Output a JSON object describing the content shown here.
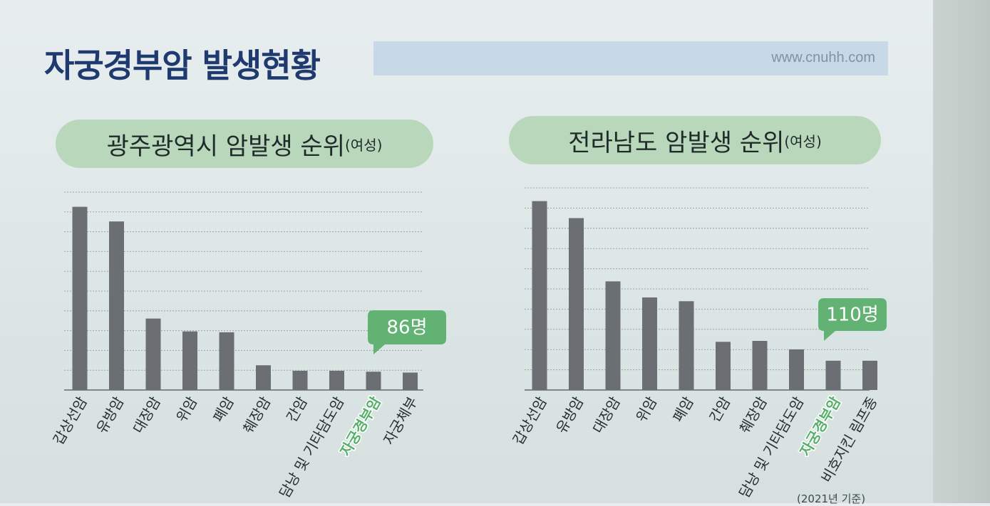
{
  "page": {
    "title": "자궁경부암 발생현황",
    "url": "www.cnuhh.com",
    "footnote": "(2021년 기준)"
  },
  "colors": {
    "bar": "#6b6e72",
    "grid": "#9aa6a6",
    "highlight_label": "#57b06a",
    "callout": "#62b274",
    "title": "#1e3a6e"
  },
  "chart_data": [
    {
      "type": "bar",
      "title": "광주광역시 암발생 순위",
      "subtitle": "(여성)",
      "categories": [
        "갑상선암",
        "유방암",
        "대장암",
        "위암",
        "폐암",
        "췌장암",
        "간암",
        "담낭 및 기타담도암",
        "자궁경부암",
        "자궁체부"
      ],
      "values": [
        100,
        92,
        39,
        32,
        31.5,
        13.5,
        10.5,
        10.5,
        10,
        9.5
      ],
      "highlight_category": "자궁경부암",
      "annotation": "86명",
      "ylim": [
        0,
        108
      ],
      "grid": true,
      "axis_labels_visible": false
    },
    {
      "type": "bar",
      "title": "전라남도 암발생 순위",
      "subtitle": "(여성)",
      "categories": [
        "갑상선암",
        "유방암",
        "대장암",
        "위암",
        "폐암",
        "간암",
        "췌장암",
        "담낭 및 기타담도암",
        "자궁경부암",
        "비호지킨 림프종"
      ],
      "values": [
        100,
        91,
        57.5,
        49,
        47,
        25.5,
        26,
        21.5,
        15.5,
        15.5
      ],
      "highlight_category": "자궁경부암",
      "annotation": "110명",
      "ylim": [
        0,
        107
      ],
      "grid": true,
      "axis_labels_visible": false
    }
  ]
}
